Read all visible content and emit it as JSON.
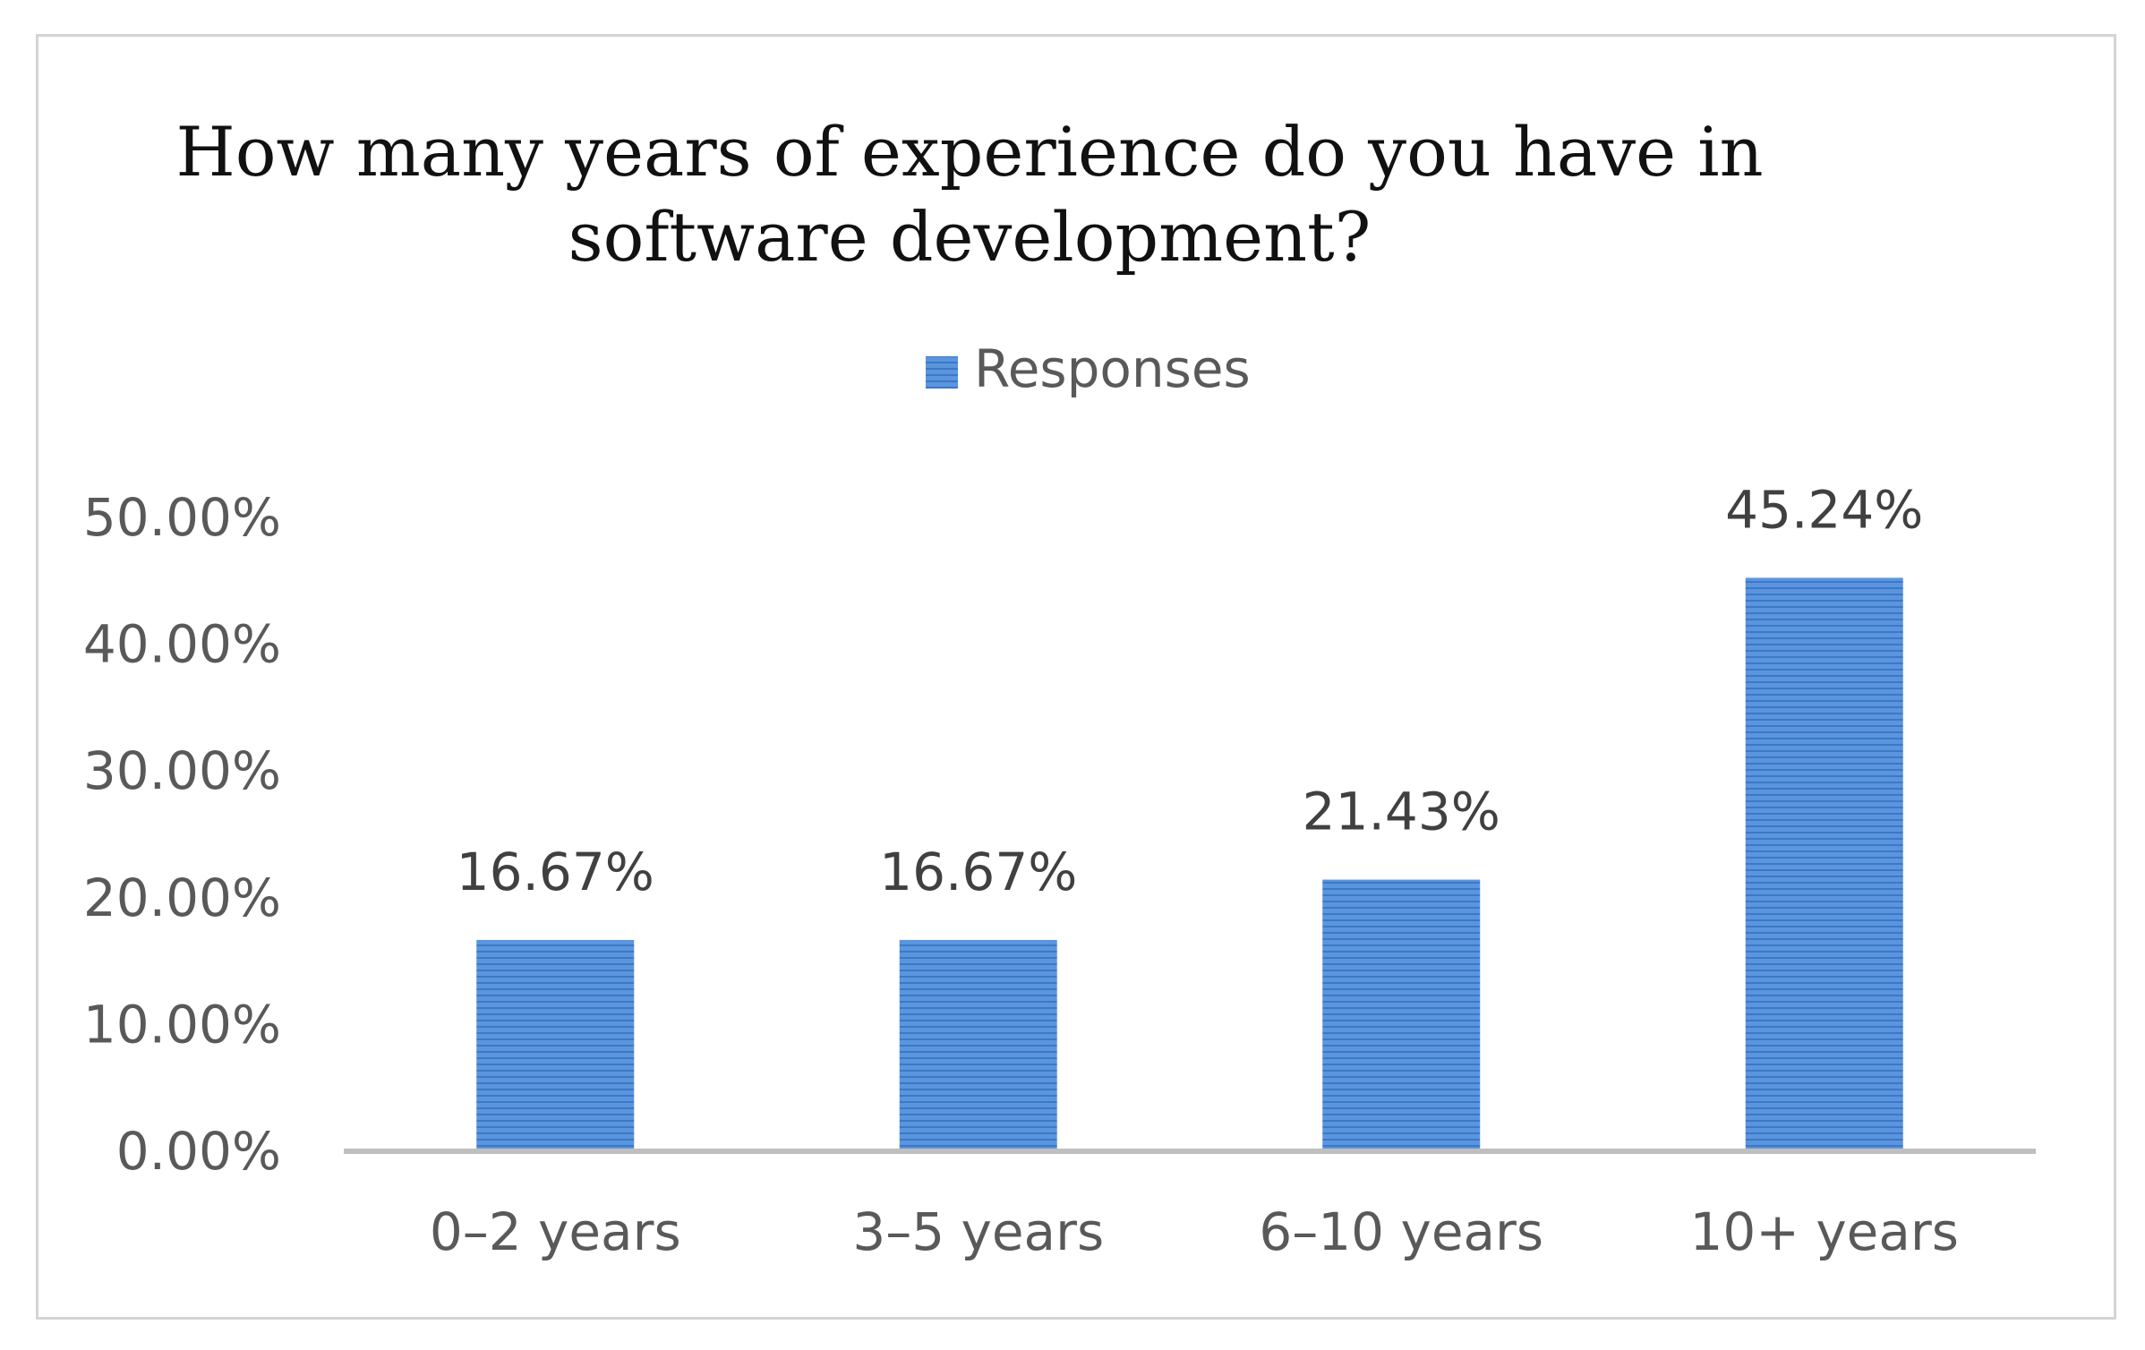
{
  "chart_data": {
    "type": "bar",
    "title_lines": [
      "How many years of experience do you have in",
      "software development?"
    ],
    "categories": [
      "0–2 years",
      "3–5 years",
      "6–10 years",
      "10+ years"
    ],
    "series": [
      {
        "name": "Responses",
        "values": [
          16.67,
          16.67,
          21.43,
          45.24
        ],
        "labels": [
          "16.67%",
          "16.67%",
          "21.43%",
          "45.24%"
        ],
        "color": "#4a86d4"
      }
    ],
    "y_ticks": [
      "0.00%",
      "10.00%",
      "20.00%",
      "30.00%",
      "40.00%",
      "50.00%"
    ],
    "ylim": [
      0,
      50
    ],
    "grid": false,
    "legend_position": "top-center",
    "xlabel": "",
    "ylabel": ""
  }
}
